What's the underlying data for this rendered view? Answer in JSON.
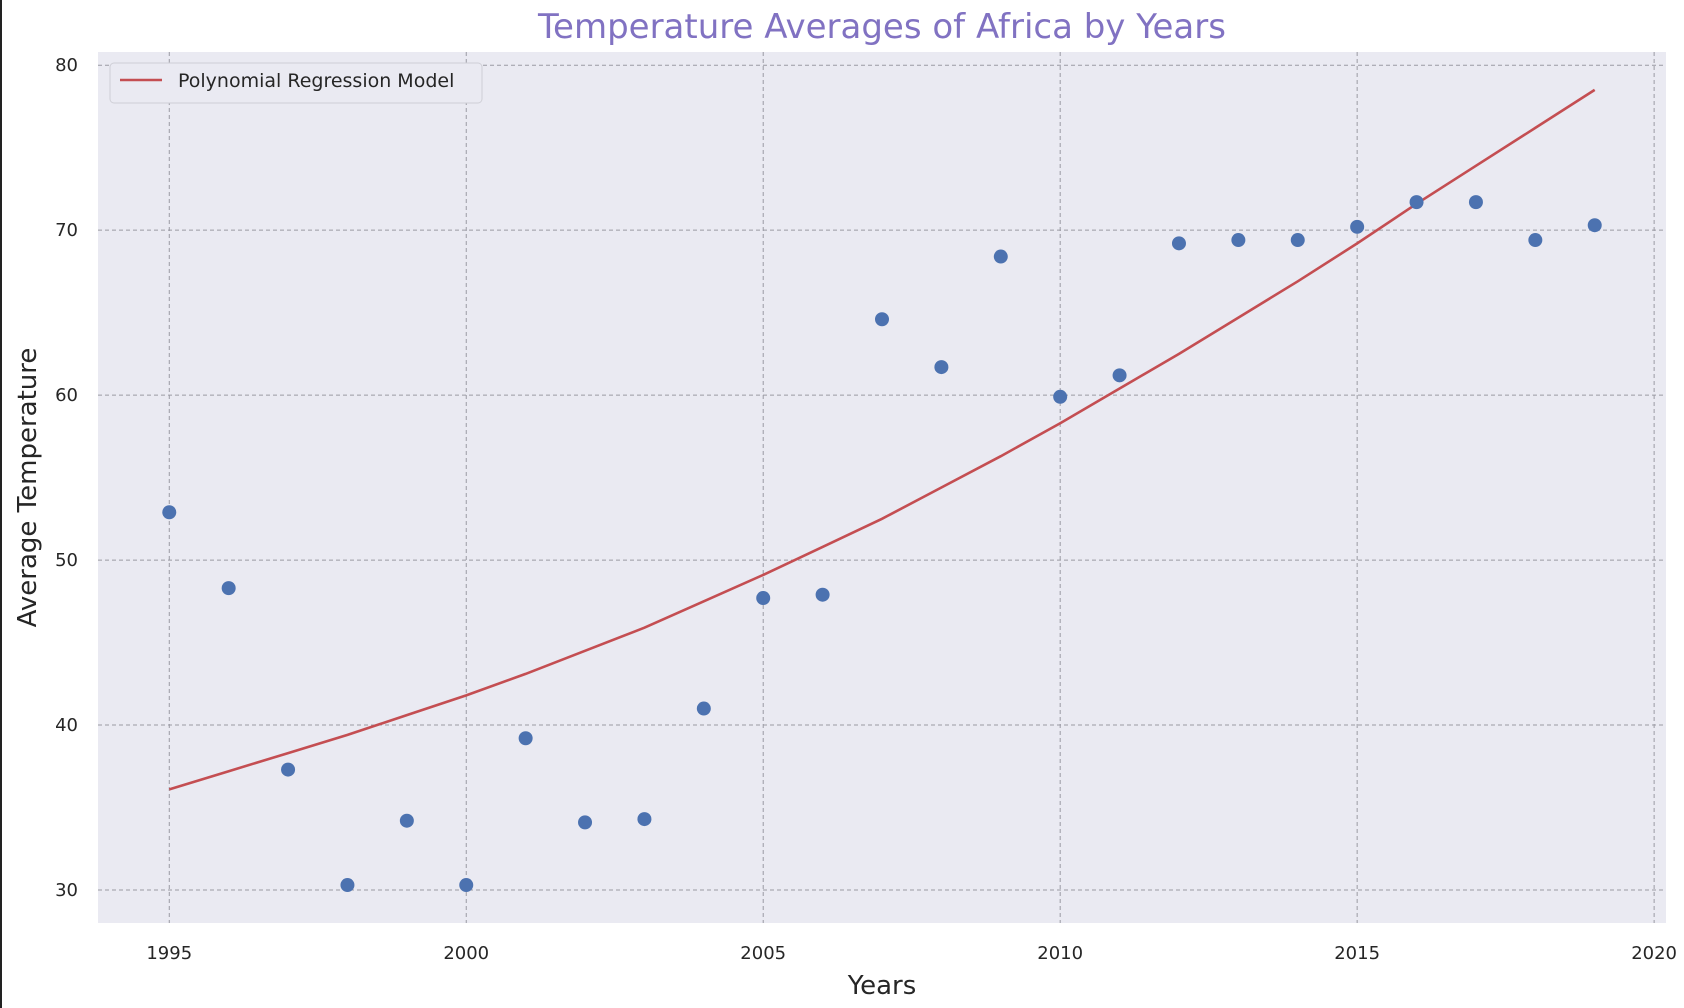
{
  "chart_data": {
    "type": "scatter",
    "title": "Temperature Averages of Africa by Years",
    "xlabel": "Years",
    "ylabel": "Average Temperature",
    "xlim": [
      1993.8,
      2020.2
    ],
    "ylim": [
      28.0,
      80.8
    ],
    "xticks": [
      "1995",
      "2000",
      "2005",
      "2010",
      "2015",
      "2020"
    ],
    "yticks": [
      "30",
      "40",
      "50",
      "60",
      "70",
      "80"
    ],
    "grid": true,
    "legend_position": "top-left",
    "colors": {
      "points": "#4c72b0",
      "line": "#c44e52",
      "background": "#eaeaf2"
    },
    "points": {
      "x": [
        1995,
        1996,
        1997,
        1998,
        1999,
        2000,
        2001,
        2002,
        2003,
        2004,
        2005,
        2006,
        2007,
        2008,
        2009,
        2010,
        2011,
        2012,
        2013,
        2014,
        2015,
        2016,
        2017,
        2018,
        2019
      ],
      "y": [
        52.9,
        48.3,
        37.3,
        30.3,
        34.2,
        30.3,
        39.2,
        34.1,
        34.3,
        41.0,
        47.7,
        47.9,
        64.6,
        61.7,
        68.4,
        59.9,
        61.2,
        69.2,
        69.4,
        69.4,
        70.2,
        71.7,
        71.7,
        69.4,
        70.3
      ]
    },
    "series": [
      {
        "name": "Polynomial Regression Model",
        "type": "line",
        "x": [
          1995,
          1996,
          1997,
          1998,
          1999,
          2000,
          2001,
          2002,
          2003,
          2004,
          2005,
          2006,
          2007,
          2008,
          2009,
          2010,
          2011,
          2012,
          2013,
          2014,
          2015,
          2016,
          2017,
          2018,
          2019
        ],
        "y": [
          36.1,
          37.2,
          38.3,
          39.4,
          40.6,
          41.8,
          43.1,
          44.5,
          45.9,
          47.5,
          49.1,
          50.8,
          52.5,
          54.4,
          56.3,
          58.3,
          60.4,
          62.5,
          64.7,
          66.9,
          69.2,
          71.6,
          73.9,
          76.2,
          78.5
        ]
      }
    ]
  }
}
